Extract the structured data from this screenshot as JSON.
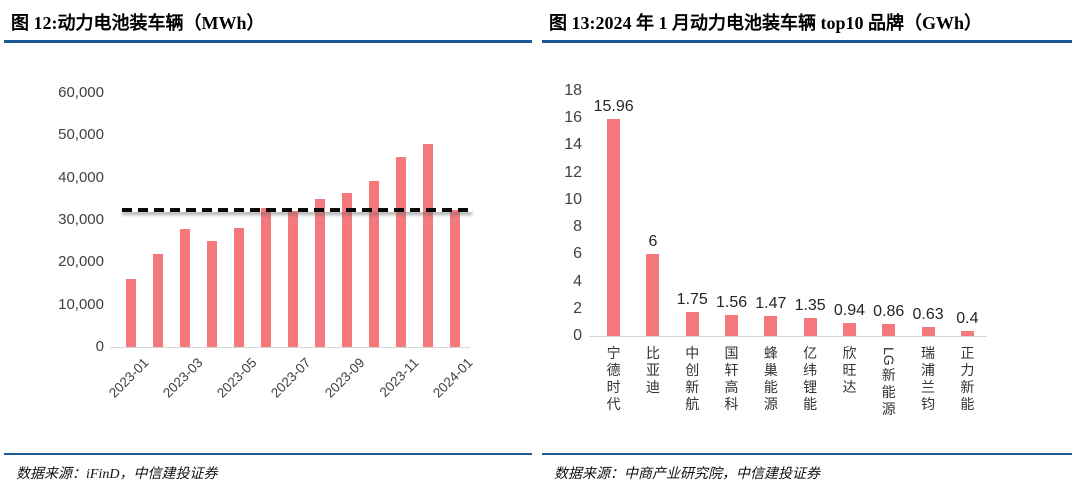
{
  "colors": {
    "bar": "#F5797C",
    "accent_rule": "#1B5A96",
    "axis_text": "#404040",
    "axis_line": "#D6D6D6",
    "reference_line": "#0A0A0A"
  },
  "left_panel": {
    "title": "图 12:动力电池装车辆（MWh）",
    "source_note": "数据来源：iFinD，中信建投证券"
  },
  "right_panel": {
    "title": "图 13:2024 年 1 月动力电池装车辆 top10 品牌（GWh）",
    "source_note": "数据来源：中商产业研究院，中信建投证券"
  },
  "chart_data": [
    {
      "type": "bar",
      "title": "图 12:动力电池装车辆（MWh）",
      "categories": [
        "2023-01",
        "2023-02",
        "2023-03",
        "2023-04",
        "2023-05",
        "2023-06",
        "2023-07",
        "2023-08",
        "2023-09",
        "2023-10",
        "2023-11",
        "2023-12",
        "2024-01"
      ],
      "values": [
        16100,
        21900,
        27800,
        25100,
        28200,
        32900,
        32200,
        34900,
        36400,
        39200,
        44900,
        47900,
        32300
      ],
      "x_tick_labels": [
        "2023-01",
        "2023-03",
        "2023-05",
        "2023-07",
        "2023-09",
        "2023-11",
        "2024-01"
      ],
      "ylim": [
        0,
        60000
      ],
      "ytick_step": 10000,
      "ytick_labels": [
        "0",
        "10,000",
        "20,000",
        "30,000",
        "40,000",
        "50,000",
        "60,000"
      ],
      "reference_line": 32300,
      "grid": false,
      "legend": false,
      "xlabel": "",
      "ylabel": ""
    },
    {
      "type": "bar",
      "title": "图 13:2024 年 1 月动力电池装车辆 top10 品牌（GWh）",
      "categories": [
        "宁德时代",
        "比亚迪",
        "中创新航",
        "国轩高科",
        "蜂巢能源",
        "亿纬锂能",
        "欣旺达",
        "LG新能源",
        "瑞浦兰钧",
        "正力新能"
      ],
      "values": [
        15.96,
        6,
        1.75,
        1.56,
        1.47,
        1.35,
        0.94,
        0.86,
        0.63,
        0.4
      ],
      "data_labels": [
        "15.96",
        "6",
        "1.75",
        "1.56",
        "1.47",
        "1.35",
        "0.94",
        "0.86",
        "0.63",
        "0.4"
      ],
      "ylim": [
        0,
        18
      ],
      "ytick_step": 2,
      "ytick_labels": [
        "0",
        "2",
        "4",
        "6",
        "8",
        "10",
        "12",
        "14",
        "16",
        "18"
      ],
      "grid": false,
      "legend": false,
      "xlabel": "",
      "ylabel": ""
    }
  ]
}
